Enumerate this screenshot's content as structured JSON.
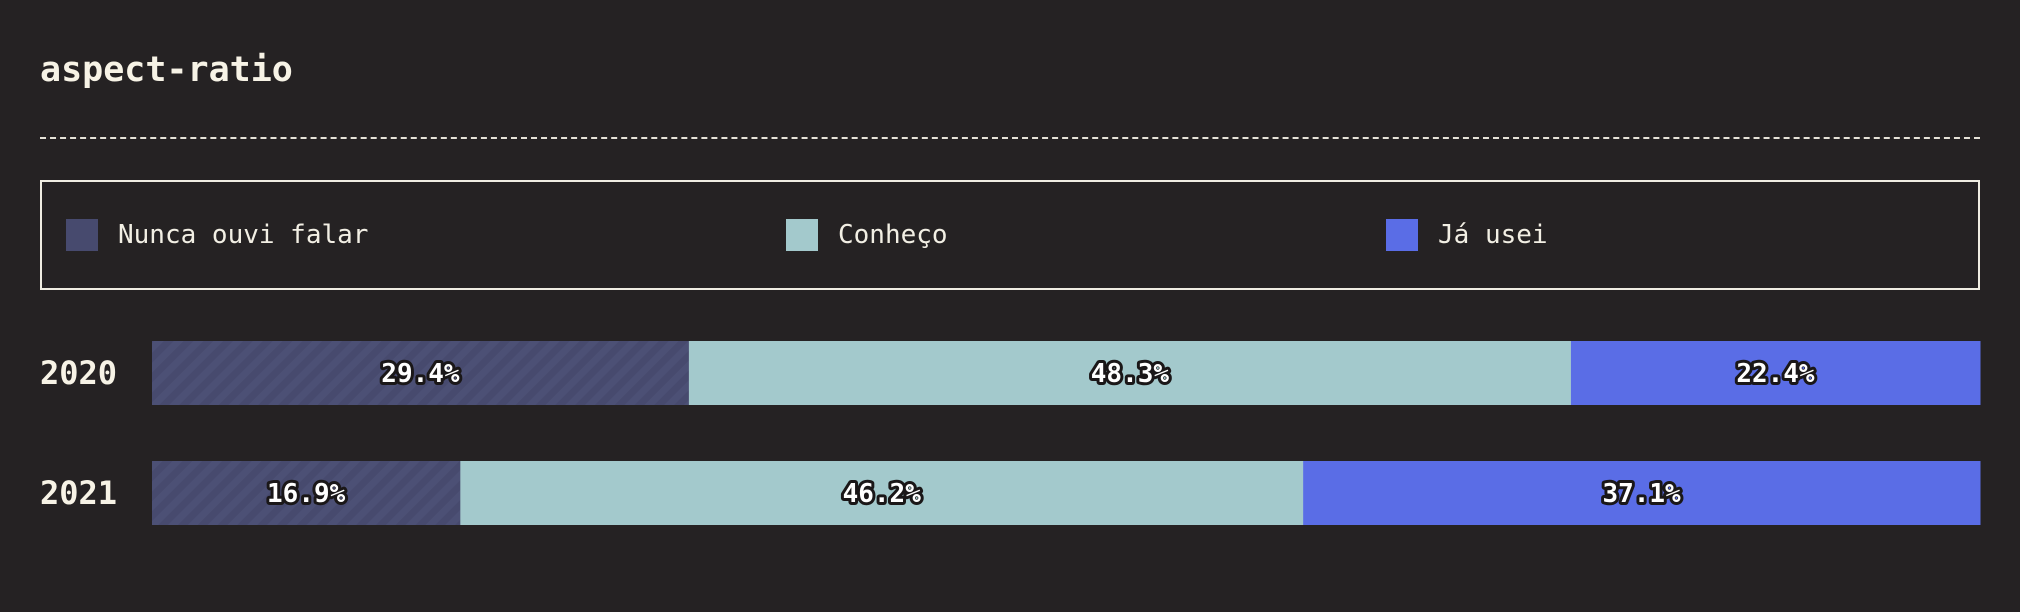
{
  "title": "aspect-ratio",
  "legend": [
    {
      "label": "Nunca ouvi falar",
      "color": "#474a6e"
    },
    {
      "label": "Conheço",
      "color": "#a3c9cc"
    },
    {
      "label": "Já usei",
      "color": "#5a6de6"
    }
  ],
  "chart_data": {
    "type": "bar",
    "orientation": "horizontal",
    "stacked": true,
    "normalized_to": 100,
    "categories": [
      "2020",
      "2021"
    ],
    "series": [
      {
        "name": "Nunca ouvi falar",
        "values": [
          29.4,
          16.9
        ],
        "labels": [
          "29.4%",
          "16.9%"
        ],
        "color": "#474a6e",
        "pattern": "diagonal-stripes"
      },
      {
        "name": "Conheço",
        "values": [
          48.3,
          46.2
        ],
        "labels": [
          "48.3%",
          "46.2%"
        ],
        "color": "#a3c9cc"
      },
      {
        "name": "Já usei",
        "values": [
          22.4,
          37.1
        ],
        "labels": [
          "22.4%",
          "37.1%"
        ],
        "color": "#5a6de6"
      }
    ],
    "legend_position": "top"
  }
}
